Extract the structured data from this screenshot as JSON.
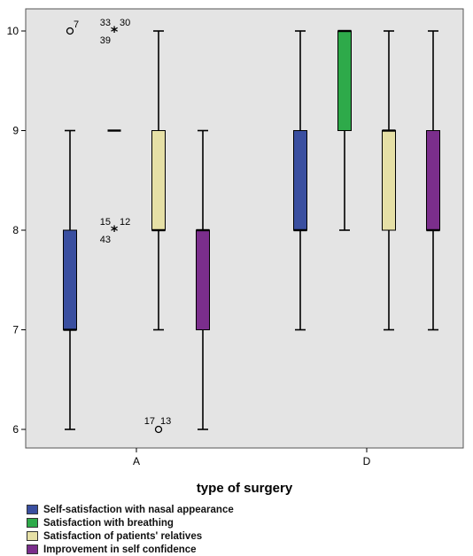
{
  "chart_data": {
    "type": "boxplot",
    "xlabel": "type of surgery",
    "ylabel": "",
    "categories": [
      "A",
      "D"
    ],
    "ylim": [
      5.77,
      10.2
    ],
    "yticks": [
      6,
      7,
      8,
      9,
      10
    ],
    "grid": false,
    "legend_position": "bottom",
    "series": [
      {
        "name": "Self-satisfaction with nasal appearance",
        "color": "#3A4FA0",
        "boxes": [
          {
            "category": "A",
            "min": 6,
            "q1": 7,
            "median": 7,
            "q3": 8,
            "max": 9
          },
          {
            "category": "D",
            "min": 7,
            "q1": 8,
            "median": 8,
            "q3": 9,
            "max": 10
          }
        ]
      },
      {
        "name": "Satisfaction with breathing",
        "color": "#2EAA4A",
        "boxes": [
          {
            "category": "A",
            "min": 9,
            "q1": 9,
            "median": 9,
            "q3": 9,
            "max": 9
          },
          {
            "category": "D",
            "min": 8,
            "q1": 9,
            "median": 10,
            "q3": 10,
            "max": 10
          }
        ]
      },
      {
        "name": "Satisfaction of patients' relatives",
        "color": "#E6E0A6",
        "boxes": [
          {
            "category": "A",
            "min": 7,
            "q1": 8,
            "median": 8,
            "q3": 9,
            "max": 10
          },
          {
            "category": "D",
            "min": 7,
            "q1": 8,
            "median": 9,
            "q3": 9,
            "max": 10
          }
        ]
      },
      {
        "name": "Improvement in self confidence",
        "color": "#7B2E8C",
        "boxes": [
          {
            "category": "A",
            "min": 6,
            "q1": 7,
            "median": 8,
            "q3": 8,
            "max": 9
          },
          {
            "category": "D",
            "min": 7,
            "q1": 8,
            "median": 8,
            "q3": 9,
            "max": 10
          }
        ]
      }
    ],
    "outliers": [
      {
        "category": "A",
        "series": 0,
        "value": 10,
        "marker": "circle",
        "labels": [
          "7"
        ]
      },
      {
        "category": "A",
        "series": 1,
        "value": 10,
        "marker": "star",
        "labels": [
          "33",
          "30",
          "39"
        ]
      },
      {
        "category": "A",
        "series": 1,
        "value": 8,
        "marker": "star",
        "labels": [
          "15",
          "12",
          "43"
        ]
      },
      {
        "category": "A",
        "series": 2,
        "value": 6,
        "marker": "circle",
        "labels": [
          "17",
          "13"
        ]
      }
    ]
  }
}
